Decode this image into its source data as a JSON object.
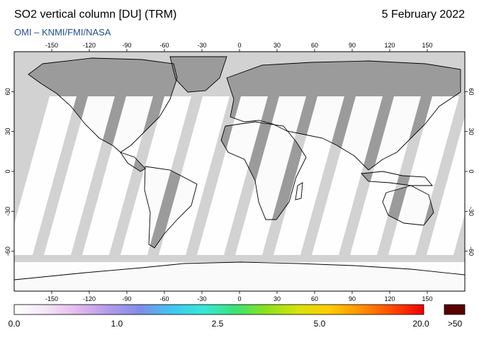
{
  "header": {
    "title": "SO2 vertical column [DU] (TRM)",
    "date": "5 February 2022",
    "source": "OMI  –  KNMI/FMI/NASA"
  },
  "map": {
    "projection": "equirectangular",
    "lon_ticks": [
      -150,
      -120,
      -90,
      -60,
      -30,
      0,
      30,
      60,
      90,
      120,
      150
    ],
    "lat_ticks": [
      60,
      30,
      0,
      -30,
      -60
    ],
    "colors": {
      "no_data": "#d2d2d2",
      "land": "#9b9b9b",
      "observed": "#ffffff",
      "coast": "#000000"
    }
  },
  "colorbar": {
    "labels": [
      "0.0",
      "1.0",
      "2.5",
      "5.0",
      "20.0"
    ],
    "overflow_label": ">50",
    "overflow_color": "#5a0000",
    "stops": [
      "#ffffff",
      "#f3e6f6",
      "#e3b8ec",
      "#b49ae8",
      "#7f8de8",
      "#3ec6f0",
      "#38e8d8",
      "#39e27a",
      "#8be21c",
      "#d5e20a",
      "#ffcc00",
      "#ff9200",
      "#ff4a00",
      "#f00000"
    ]
  }
}
